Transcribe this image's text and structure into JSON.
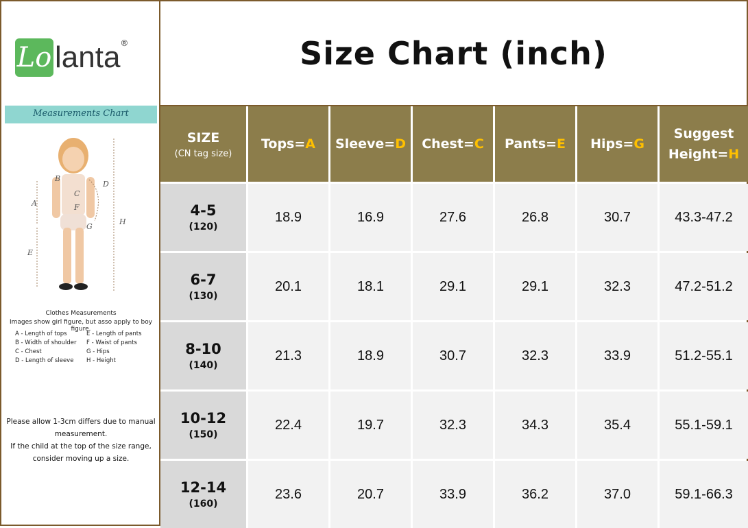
{
  "logo": {
    "mark": "Lo",
    "text": "lanta",
    "registered": "®"
  },
  "sidebar": {
    "heading": "Measurements Chart",
    "figure_labels": [
      "A",
      "B",
      "C",
      "D",
      "E",
      "F",
      "G",
      "H"
    ],
    "caption_title": "Clothes Measurements",
    "caption_note": "Images show girl figure, but asso apply to boy figure.",
    "legend": [
      "A - Length of tops",
      "E - Length of pants",
      "B - Width of shoulder",
      "F - Waist of pants",
      "C - Chest",
      "G - Hips",
      "D - Length of sleeve",
      "H - Height"
    ],
    "notes": [
      "Please allow 1-3cm differs due to manual measurement.",
      "If the child at the top of the size range, consider moving up a size."
    ]
  },
  "header": {
    "title": "Size Chart (inch)"
  },
  "table": {
    "size_header": {
      "label": "SIZE",
      "sub": "(CN tag size)"
    },
    "columns": [
      {
        "label": "Tops=",
        "letter": "A"
      },
      {
        "label": "Sleeve=",
        "letter": "D"
      },
      {
        "label": "Chest=",
        "letter": "C"
      },
      {
        "label": "Pants=",
        "letter": "E"
      },
      {
        "label": "Hips=",
        "letter": "G"
      },
      {
        "label": "Suggest Height=",
        "letter": "H"
      }
    ],
    "rows": [
      {
        "size": "4-5",
        "tag": "(120)",
        "cells": [
          "18.9",
          "16.9",
          "27.6",
          "26.8",
          "30.7",
          "43.3-47.2"
        ]
      },
      {
        "size": "6-7",
        "tag": "(130)",
        "cells": [
          "20.1",
          "18.1",
          "29.1",
          "29.1",
          "32.3",
          "47.2-51.2"
        ]
      },
      {
        "size": "8-10",
        "tag": "(140)",
        "cells": [
          "21.3",
          "18.9",
          "30.7",
          "32.3",
          "33.9",
          "51.2-55.1"
        ]
      },
      {
        "size": "10-12",
        "tag": "(150)",
        "cells": [
          "22.4",
          "19.7",
          "32.3",
          "34.3",
          "35.4",
          "55.1-59.1"
        ]
      },
      {
        "size": "12-14",
        "tag": "(160)",
        "cells": [
          "23.6",
          "20.7",
          "33.9",
          "36.2",
          "37.0",
          "59.1-66.3"
        ]
      }
    ]
  }
}
